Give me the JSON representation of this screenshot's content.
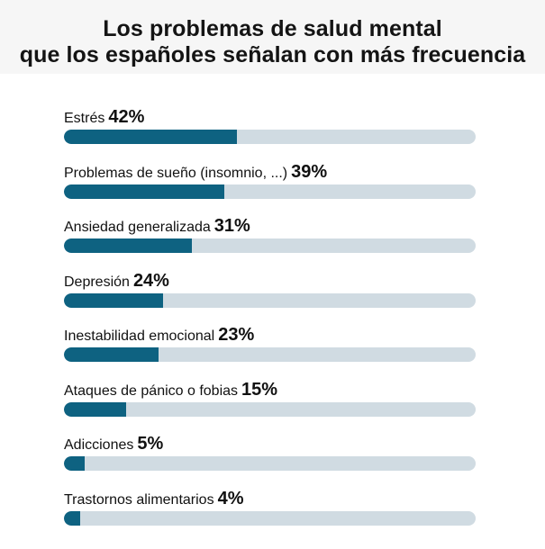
{
  "chart_data": {
    "type": "bar",
    "title": "Los problemas de salud mental",
    "subtitle": "que los españoles señalan con más frecuencia",
    "unit": "%",
    "categories": [
      "Estrés",
      "Problemas de sueño (insomnio, ...)",
      "Ansiedad generalizada",
      "Depresión",
      "Inestabilidad emocional",
      "Ataques de pánico o fobias",
      "Adicciones",
      "Trastornos alimentarios"
    ],
    "values": [
      42,
      39,
      31,
      24,
      23,
      15,
      5,
      4
    ],
    "value_labels": [
      "42%",
      "39%",
      "31%",
      "24%",
      "23%",
      "15%",
      "5%",
      "4%"
    ],
    "ylim": [
      0,
      100
    ],
    "grid": false,
    "legend": "none",
    "colors": {
      "fill": "#0e6281",
      "track": "#d0dbe2",
      "header_bg": "#f6f6f6"
    }
  }
}
